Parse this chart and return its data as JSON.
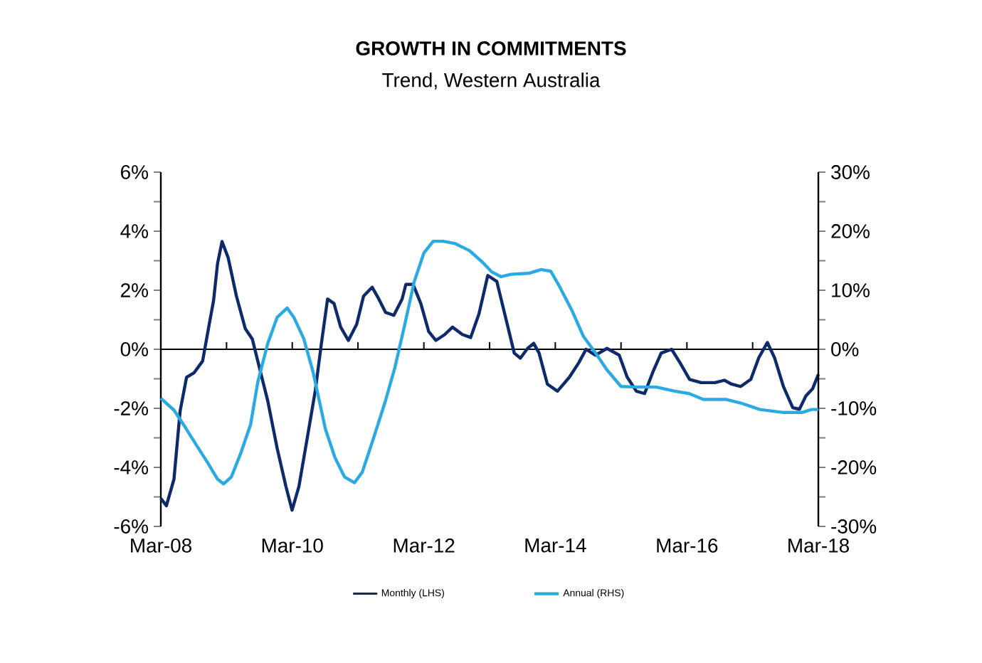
{
  "chart_data": {
    "type": "line",
    "title": "GROWTH IN COMMITMENTS",
    "subtitle": "Trend, Western Australia",
    "xlim": [
      "2008-03",
      "2018-03"
    ],
    "xticks": [
      {
        "value": "2008-03",
        "label": "Mar-08"
      },
      {
        "value": "2009-03",
        "label": null
      },
      {
        "value": "2010-03",
        "label": "Mar-10"
      },
      {
        "value": "2011-03",
        "label": null
      },
      {
        "value": "2012-03",
        "label": "Mar-12"
      },
      {
        "value": "2013-03",
        "label": null
      },
      {
        "value": "2014-03",
        "label": "Mar-14"
      },
      {
        "value": "2015-03",
        "label": null
      },
      {
        "value": "2016-03",
        "label": "Mar-16"
      },
      {
        "value": "2017-03",
        "label": null
      },
      {
        "value": "2018-03",
        "label": "Mar-18"
      }
    ],
    "ylim": [
      -6,
      6
    ],
    "yticks": [
      {
        "value": -6,
        "label": "-6%"
      },
      {
        "value": -5,
        "label": null
      },
      {
        "value": -4,
        "label": "-4%"
      },
      {
        "value": -3,
        "label": null
      },
      {
        "value": -2,
        "label": "-2%"
      },
      {
        "value": -1,
        "label": null
      },
      {
        "value": 0,
        "label": "0%"
      },
      {
        "value": 1,
        "label": null
      },
      {
        "value": 2,
        "label": "2%"
      },
      {
        "value": 3,
        "label": null
      },
      {
        "value": 4,
        "label": "4%"
      },
      {
        "value": 5,
        "label": null
      },
      {
        "value": 6,
        "label": "6%"
      }
    ],
    "y2lim": [
      -30,
      30
    ],
    "y2ticks": [
      {
        "value": -30,
        "label": "-30%"
      },
      {
        "value": -25,
        "label": null
      },
      {
        "value": -20,
        "label": "-20%"
      },
      {
        "value": -15,
        "label": null
      },
      {
        "value": -10,
        "label": "-10%"
      },
      {
        "value": -5,
        "label": null
      },
      {
        "value": 0,
        "label": "0%"
      },
      {
        "value": 5,
        "label": null
      },
      {
        "value": 10,
        "label": "10%"
      },
      {
        "value": 15,
        "label": null
      },
      {
        "value": 20,
        "label": "20%"
      },
      {
        "value": 25,
        "label": null
      },
      {
        "value": 30,
        "label": "30%"
      }
    ],
    "ref_lines": [
      {
        "axis": "y",
        "value": 0,
        "color": "#000000"
      }
    ],
    "legend": "bottom",
    "series": [
      {
        "name": "Monthly (LHS)",
        "color": "#0d2a6b",
        "x": [
          "2008-03-01",
          "2008-04-01",
          "2008-05-13",
          "2008-06-16",
          "2008-07-22",
          "2008-09-01",
          "2008-10-19",
          "2008-11-25",
          "2008-12-19",
          "2009-01-10",
          "2009-02-04",
          "2009-03-10",
          "2009-04-25",
          "2009-06-13",
          "2009-07-22",
          "2009-09-07",
          "2009-10-16",
          "2009-12-07",
          "2010-01-25",
          "2010-02-28",
          "2010-04-07",
          "2010-05-22",
          "2010-07-07",
          "2010-08-10",
          "2010-09-13",
          "2010-10-19",
          "2010-11-25",
          "2011-01-07",
          "2011-02-22",
          "2011-04-01",
          "2011-05-19",
          "2011-06-25",
          "2011-08-01",
          "2011-09-16",
          "2011-11-01",
          "2011-11-22",
          "2012-01-01",
          "2012-02-13",
          "2012-03-28",
          "2012-05-07",
          "2012-06-25",
          "2012-08-07",
          "2012-10-01",
          "2012-11-16",
          "2013-01-01",
          "2013-02-19",
          "2013-04-10",
          "2013-06-01",
          "2013-07-16",
          "2013-08-19",
          "2013-09-28",
          "2013-11-01",
          "2013-12-01",
          "2014-01-16",
          "2014-03-13",
          "2014-05-19",
          "2014-07-10",
          "2014-08-19",
          "2014-10-10",
          "2014-12-13",
          "2015-02-19",
          "2015-04-04",
          "2015-05-25",
          "2015-07-10",
          "2015-08-25",
          "2015-10-10",
          "2015-12-07",
          "2016-01-22",
          "2016-03-16",
          "2016-05-19",
          "2016-08-04",
          "2016-09-25",
          "2016-11-04",
          "2016-12-25",
          "2017-02-19",
          "2017-04-04",
          "2017-05-22",
          "2017-07-01",
          "2017-08-19",
          "2017-10-10",
          "2017-11-16",
          "2017-12-22",
          "2018-01-28",
          "2018-03-01"
        ],
        "values": [
          -5.05,
          -5.3,
          -4.4,
          -2.1,
          -0.95,
          -0.8,
          -0.4,
          0.85,
          1.65,
          2.9,
          3.65,
          3.1,
          1.8,
          0.7,
          0.35,
          -0.8,
          -1.75,
          -3.35,
          -4.65,
          -5.45,
          -4.65,
          -3.05,
          -1.4,
          0.2,
          1.7,
          1.55,
          0.75,
          0.3,
          0.85,
          1.8,
          2.1,
          1.7,
          1.25,
          1.15,
          1.7,
          2.2,
          2.2,
          1.55,
          0.6,
          0.3,
          0.5,
          0.75,
          0.5,
          0.4,
          1.2,
          2.5,
          2.3,
          1.0,
          -0.13,
          -0.3,
          0.03,
          0.2,
          -0.13,
          -1.18,
          -1.42,
          -0.94,
          -0.45,
          0,
          -0.2,
          0.03,
          -0.2,
          -0.94,
          -1.42,
          -1.5,
          -0.77,
          -0.13,
          0,
          -0.45,
          -1.02,
          -1.13,
          -1.13,
          -1.05,
          -1.18,
          -1.26,
          -1.02,
          -0.29,
          0.23,
          -0.29,
          -1.26,
          -1.98,
          -2.03,
          -1.58,
          -1.34,
          -0.85
        ]
      },
      {
        "name": "Annual (RHS)",
        "color": "#2aaae2",
        "axis": "y2",
        "x": [
          "2008-03-01",
          "2008-05-13",
          "2008-07-04",
          "2008-09-10",
          "2008-11-16",
          "2009-01-10",
          "2009-02-13",
          "2009-03-28",
          "2009-05-19",
          "2009-07-13",
          "2009-08-22",
          "2009-10-16",
          "2009-12-07",
          "2010-02-01",
          "2010-03-10",
          "2010-05-04",
          "2010-06-25",
          "2010-09-01",
          "2010-10-25",
          "2010-12-16",
          "2011-02-10",
          "2011-03-25",
          "2011-05-25",
          "2011-08-01",
          "2011-09-22",
          "2011-11-16",
          "2012-01-07",
          "2012-03-01",
          "2012-04-22",
          "2012-06-16",
          "2012-08-22",
          "2012-11-10",
          "2013-01-22",
          "2013-03-13",
          "2013-05-04",
          "2013-06-28",
          "2013-10-10",
          "2013-12-13",
          "2014-02-04",
          "2014-03-25",
          "2014-06-01",
          "2014-08-04",
          "2014-10-10",
          "2014-12-13",
          "2015-03-01",
          "2015-06-01",
          "2015-09-13",
          "2015-12-25",
          "2016-03-13",
          "2016-06-01",
          "2016-10-07",
          "2016-12-25",
          "2017-04-10",
          "2017-08-19",
          "2017-12-01",
          "2018-01-22",
          "2018-03-01"
        ],
        "values": [
          -8.3,
          -10.3,
          -12.7,
          -16,
          -19.2,
          -22,
          -22.8,
          -21.6,
          -17.6,
          -12.7,
          -5.5,
          1,
          5.4,
          7,
          5.4,
          1.8,
          -3.9,
          -13.5,
          -18.4,
          -21.6,
          -22.6,
          -20.8,
          -15.2,
          -8.7,
          -3.1,
          4.2,
          11.4,
          16.3,
          18.3,
          18.3,
          17.9,
          16.7,
          14.7,
          13.1,
          12.3,
          12.7,
          12.9,
          13.5,
          13.2,
          10.6,
          6.6,
          2.2,
          -0.6,
          -3.5,
          -6.3,
          -6.4,
          -6.4,
          -7.1,
          -7.5,
          -8.5,
          -8.5,
          -9.1,
          -10.2,
          -10.7,
          -10.7,
          -10.2,
          -10.2
        ]
      }
    ]
  }
}
